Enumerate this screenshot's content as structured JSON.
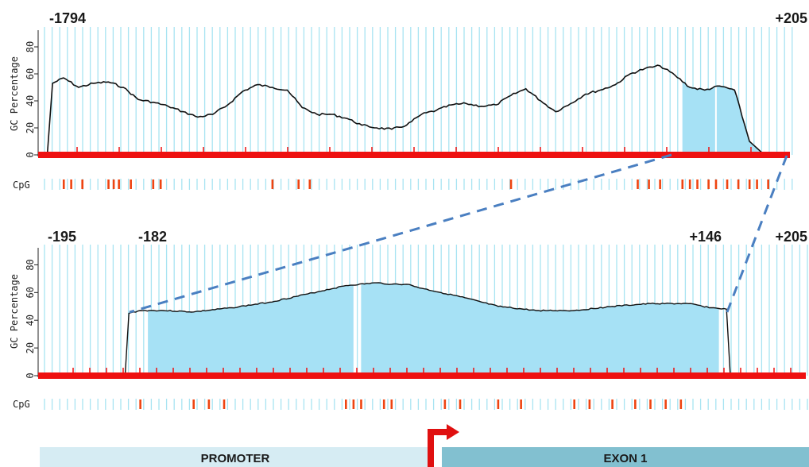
{
  "coordinates": {
    "top_left": "-1794",
    "top_right": "+205",
    "bottom_left": "-195",
    "bottom_left2": "-182",
    "bottom_right2": "+146",
    "bottom_right": "+205"
  },
  "y_axis_label": "GC Percentage",
  "cpg_label": "CpG",
  "regions": {
    "promoter": "PROMOTER",
    "exon": "EXON 1"
  },
  "colors": {
    "grid": "#a8e4f2",
    "fill": "#a6e1f5",
    "baseline": "#ee1111",
    "cpg": "#ee4411",
    "dashed": "#4a7fc1",
    "promoter_bg": "#d6ecf3",
    "exon_bg": "#82c0d0",
    "tss_arrow": "#e01010"
  },
  "chart_data": [
    {
      "type": "line",
      "ylabel": "GC Percentage",
      "yticks": [
        "0",
        "20",
        "40",
        "60",
        "80"
      ],
      "ylim": [
        0,
        90
      ],
      "x_range": [
        "-1794",
        "+205"
      ],
      "series": [
        {
          "x": [
            0,
            0.008,
            0.015,
            0.03,
            0.05,
            0.07,
            0.09,
            0.11,
            0.13,
            0.15,
            0.17,
            0.19,
            0.21,
            0.23,
            0.25,
            0.27,
            0.29,
            0.31,
            0.33,
            0.35,
            0.37,
            0.39,
            0.41,
            0.43,
            0.45,
            0.47,
            0.49,
            0.51,
            0.53,
            0.55,
            0.57,
            0.59,
            0.61,
            0.63,
            0.65,
            0.67,
            0.69,
            0.71,
            0.73,
            0.75,
            0.77,
            0.79,
            0.81,
            0.83,
            0.85,
            0.87,
            0.89,
            0.91,
            0.93,
            0.95,
            0.97,
            0.985,
            0.99,
            1.0
          ],
          "values": [
            0,
            0,
            53,
            57,
            50,
            53,
            54,
            50,
            41,
            39,
            36,
            32,
            28,
            30,
            37,
            47,
            52,
            50,
            48,
            35,
            30,
            30,
            27,
            22,
            20,
            19,
            22,
            30,
            33,
            37,
            38,
            36,
            37,
            44,
            49,
            40,
            32,
            38,
            45,
            48,
            52,
            60,
            64,
            66,
            59,
            50,
            48,
            51,
            48,
            10,
            0,
            0,
            0,
            0
          ]
        }
      ],
      "highlight_x": [
        0.86,
        0.975
      ],
      "cpg_x": [
        0.03,
        0.04,
        0.055,
        0.09,
        0.097,
        0.104,
        0.12,
        0.15,
        0.16,
        0.31,
        0.345,
        0.36,
        0.63,
        0.8,
        0.815,
        0.83,
        0.86,
        0.87,
        0.88,
        0.895,
        0.905,
        0.92,
        0.935,
        0.95,
        0.96,
        0.975
      ]
    },
    {
      "type": "line",
      "ylabel": "GC Percentage",
      "yticks": [
        "0",
        "20",
        "40",
        "60",
        "80"
      ],
      "ylim": [
        0,
        90
      ],
      "x_range": [
        "-195",
        "+205"
      ],
      "series": [
        {
          "x": [
            0,
            0.11,
            0.115,
            0.13,
            0.16,
            0.2,
            0.25,
            0.3,
            0.35,
            0.4,
            0.44,
            0.46,
            0.48,
            0.5,
            0.55,
            0.6,
            0.65,
            0.7,
            0.75,
            0.8,
            0.85,
            0.88,
            0.9,
            0.905,
            0.91,
            1.0
          ],
          "values": [
            0,
            0,
            45,
            47,
            47,
            46,
            49,
            53,
            59,
            65,
            67,
            66,
            66,
            63,
            57,
            50,
            47,
            47,
            50,
            52,
            52,
            49,
            48,
            0,
            0,
            0
          ],
          "fill_segments": [
            [
              0.14,
              0.41
            ],
            [
              0.42,
              0.89
            ]
          ]
        }
      ],
      "cpg_x": [
        0.13,
        0.2,
        0.22,
        0.24,
        0.4,
        0.41,
        0.42,
        0.45,
        0.46,
        0.53,
        0.55,
        0.6,
        0.63,
        0.7,
        0.72,
        0.75,
        0.78,
        0.8,
        0.82,
        0.84
      ]
    }
  ]
}
